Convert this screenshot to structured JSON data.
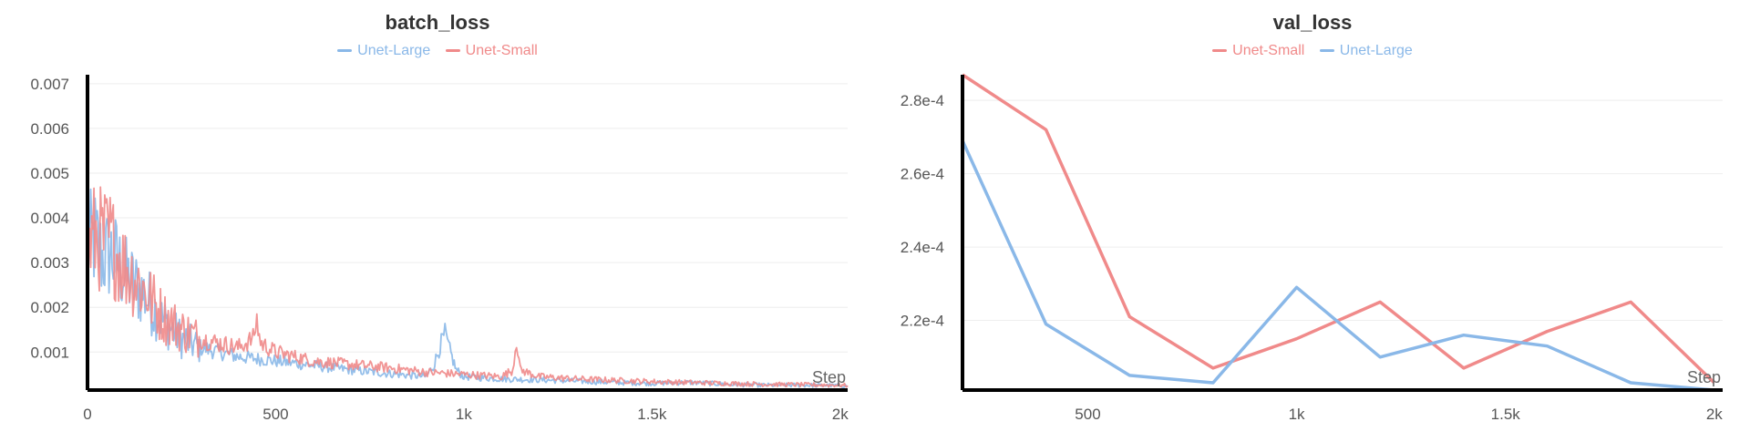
{
  "colors": {
    "unet_large": "#8ab8e8",
    "unet_small": "#f08a8a",
    "axis": "#000000",
    "tick": "#555555",
    "grid": "#eeeeee"
  },
  "chart_data": [
    {
      "type": "line",
      "title": "batch_loss",
      "xlabel": "Step",
      "ylabel": "",
      "xlim": [
        0,
        2020
      ],
      "ylim": [
        0.00015,
        0.0072
      ],
      "x_ticks": [
        0,
        500,
        1000,
        1500,
        2000
      ],
      "x_tick_labels": [
        "0",
        "500",
        "1k",
        "1.5k",
        "2k"
      ],
      "y_ticks": [
        0.001,
        0.002,
        0.003,
        0.004,
        0.005,
        0.006,
        0.007
      ],
      "y_tick_labels": [
        "0.001",
        "0.002",
        "0.003",
        "0.004",
        "0.005",
        "0.006",
        "0.007"
      ],
      "legend": [
        "Unet-Large",
        "Unet-Small"
      ],
      "legend_position": "top-center",
      "grid": true,
      "series": [
        {
          "name": "Unet-Large",
          "color": "#8ab8e8",
          "noisy": true,
          "x": [
            0,
            20,
            40,
            60,
            80,
            100,
            150,
            200,
            250,
            300,
            350,
            400,
            450,
            500,
            600,
            700,
            800,
            900,
            920,
            940,
            950,
            960,
            980,
            1000,
            1100,
            1200,
            1300,
            1400,
            1500,
            1600,
            1700,
            1800,
            1900,
            2000,
            2020
          ],
          "y": [
            0.0034,
            0.0035,
            0.0031,
            0.0032,
            0.003,
            0.0027,
            0.0023,
            0.0017,
            0.0013,
            0.0011,
            0.001,
            0.0009,
            0.00085,
            0.0008,
            0.0007,
            0.0006,
            0.00052,
            0.00045,
            0.0007,
            0.0012,
            0.0014,
            0.0011,
            0.0006,
            0.00045,
            0.0004,
            0.00038,
            0.00035,
            0.00032,
            0.0003,
            0.00032,
            0.00028,
            0.00026,
            0.00026,
            0.00025,
            0.00024
          ]
        },
        {
          "name": "Unet-Small",
          "color": "#f08a8a",
          "noisy": true,
          "x": [
            0,
            20,
            40,
            60,
            80,
            100,
            150,
            200,
            250,
            300,
            350,
            400,
            440,
            450,
            460,
            500,
            600,
            700,
            800,
            900,
            1000,
            1100,
            1130,
            1140,
            1150,
            1200,
            1300,
            1400,
            1500,
            1600,
            1700,
            1800,
            1900,
            2000,
            2020
          ],
          "y": [
            0.0033,
            0.0036,
            0.0035,
            0.0035,
            0.0032,
            0.0029,
            0.0024,
            0.0018,
            0.0015,
            0.0013,
            0.0012,
            0.0011,
            0.0013,
            0.0017,
            0.0012,
            0.001,
            0.0008,
            0.00072,
            0.00065,
            0.00055,
            0.0005,
            0.00045,
            0.0006,
            0.0013,
            0.0006,
            0.00045,
            0.0004,
            0.00037,
            0.00034,
            0.00032,
            0.0003,
            0.00028,
            0.00027,
            0.00026,
            0.00025
          ]
        }
      ]
    },
    {
      "type": "line",
      "title": "val_loss",
      "xlabel": "Step",
      "ylabel": "",
      "xlim": [
        200,
        2020
      ],
      "ylim": [
        0.000201,
        0.000287
      ],
      "x_ticks": [
        500,
        1000,
        1500,
        2000
      ],
      "x_tick_labels": [
        "500",
        "1k",
        "1.5k",
        "2k"
      ],
      "y_ticks": [
        0.00022,
        0.00024,
        0.00026,
        0.00028
      ],
      "y_tick_labels": [
        "2.2e-4",
        "2.4e-4",
        "2.6e-4",
        "2.8e-4"
      ],
      "legend": [
        "Unet-Small",
        "Unet-Large"
      ],
      "legend_position": "top-center",
      "grid": true,
      "series": [
        {
          "name": "Unet-Small",
          "color": "#f08a8a",
          "x": [
            200,
            400,
            600,
            800,
            1000,
            1200,
            1400,
            1600,
            1800,
            2000
          ],
          "y": [
            0.000287,
            0.000272,
            0.000221,
            0.000207,
            0.000215,
            0.000225,
            0.000207,
            0.000217,
            0.000225,
            0.000203
          ]
        },
        {
          "name": "Unet-Large",
          "color": "#8ab8e8",
          "x": [
            200,
            400,
            600,
            800,
            1000,
            1200,
            1400,
            1600,
            1800,
            2000
          ],
          "y": [
            0.000269,
            0.000219,
            0.000205,
            0.000203,
            0.000229,
            0.00021,
            0.000216,
            0.000213,
            0.000203,
            0.000201
          ]
        }
      ]
    }
  ]
}
